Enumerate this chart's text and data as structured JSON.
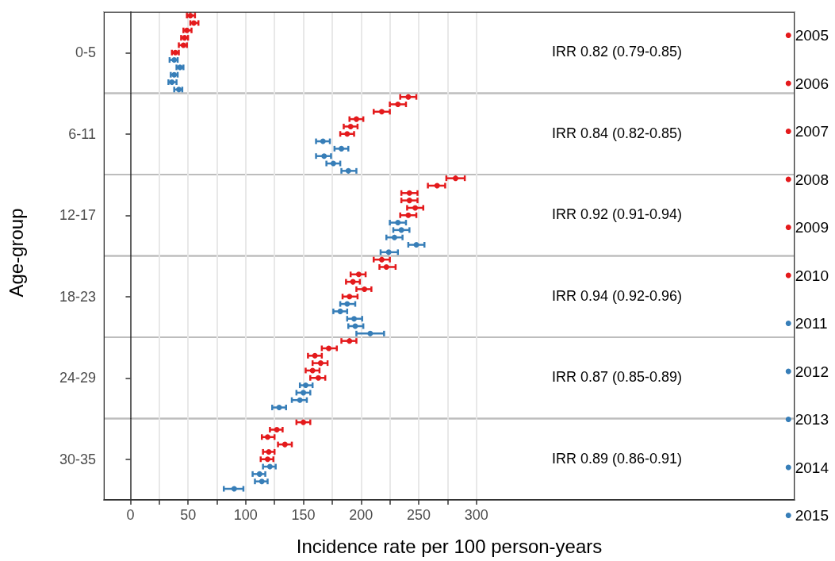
{
  "chart_data": {
    "type": "scatter",
    "orientation": "horizontal",
    "xlabel": "Incidence rate per 100 person-years",
    "ylabel": "Age-group",
    "categories": [
      null,
      null,
      null,
      null,
      null,
      "0-5",
      null,
      null,
      null,
      null,
      null,
      null,
      null,
      null,
      null,
      null,
      "6-11",
      null,
      null,
      null,
      null,
      null,
      null,
      null,
      null,
      null,
      null,
      "12-17",
      null,
      null,
      null,
      null,
      null,
      null,
      null,
      null,
      null,
      null,
      "18-23",
      null,
      null,
      null,
      null,
      null,
      null,
      null,
      null,
      null,
      null,
      "24-29",
      null,
      null,
      null,
      null,
      null,
      null,
      null,
      null,
      null,
      null,
      "30-35",
      null,
      null,
      null,
      null,
      null
    ],
    "xlim": [
      -23,
      576
    ],
    "xticks": [
      0,
      {
        "value": 25,
        "label": null
      },
      50,
      {
        "value": 75,
        "label": null
      },
      100,
      {
        "value": 125,
        "label": null
      },
      150,
      {
        "value": 175,
        "label": null
      },
      200,
      {
        "value": 225,
        "label": null
      },
      250,
      {
        "value": 275,
        "label": null
      },
      300
    ],
    "grid": "x",
    "legend": "right",
    "marker": "circle",
    "annotations": [
      "IRR 0.82 (0.79-0.85)",
      "IRR 0.84 (0.82-0.85)",
      "IRR 0.92 (0.91-0.94)",
      "IRR 0.94 (0.92-0.96)",
      "IRR 0.87 (0.85-0.89)",
      "IRR 0.89 (0.86-0.91)"
    ],
    "series": [
      {
        "name": "2005",
        "color": "#e41a1c",
        "values": [
          52,
          null,
          null,
          null,
          null,
          null,
          null,
          null,
          null,
          null,
          null,
          241,
          null,
          null,
          null,
          null,
          null,
          null,
          null,
          null,
          null,
          null,
          282,
          null,
          null,
          null,
          null,
          null,
          null,
          null,
          null,
          null,
          null,
          218,
          null,
          null,
          null,
          null,
          null,
          null,
          null,
          null,
          null,
          null,
          190,
          null,
          null,
          null,
          null,
          null,
          null,
          null,
          null,
          null,
          null,
          150,
          null,
          null,
          null,
          null,
          null,
          null,
          null,
          null,
          null,
          null
        ],
        "errors": [
          [
            49,
            56
          ],
          null,
          null,
          null,
          null,
          null,
          null,
          null,
          null,
          null,
          null,
          [
            234,
            248
          ],
          null,
          null,
          null,
          null,
          null,
          null,
          null,
          null,
          null,
          null,
          [
            274,
            290
          ],
          null,
          null,
          null,
          null,
          null,
          null,
          null,
          null,
          null,
          null,
          [
            211,
            225
          ],
          null,
          null,
          null,
          null,
          null,
          null,
          null,
          null,
          null,
          null,
          [
            183,
            196
          ],
          null,
          null,
          null,
          null,
          null,
          null,
          null,
          null,
          null,
          null,
          [
            144,
            156
          ],
          null,
          null,
          null,
          null,
          null,
          null,
          null,
          null,
          null,
          null
        ]
      },
      {
        "name": "2006",
        "color": "#e41a1c",
        "values": [
          null,
          55,
          null,
          null,
          null,
          null,
          null,
          null,
          null,
          null,
          null,
          null,
          232,
          null,
          null,
          null,
          null,
          null,
          null,
          null,
          null,
          null,
          null,
          266,
          null,
          null,
          null,
          null,
          null,
          null,
          null,
          null,
          null,
          null,
          222,
          null,
          null,
          null,
          null,
          null,
          null,
          null,
          null,
          null,
          null,
          172,
          null,
          null,
          null,
          null,
          null,
          null,
          null,
          null,
          null,
          null,
          127,
          null,
          null,
          null,
          null,
          null,
          null,
          null,
          null,
          null
        ],
        "errors": [
          null,
          [
            52,
            59
          ],
          null,
          null,
          null,
          null,
          null,
          null,
          null,
          null,
          null,
          null,
          [
            225,
            239
          ],
          null,
          null,
          null,
          null,
          null,
          null,
          null,
          null,
          null,
          null,
          [
            258,
            273
          ],
          null,
          null,
          null,
          null,
          null,
          null,
          null,
          null,
          null,
          null,
          [
            216,
            230
          ],
          null,
          null,
          null,
          null,
          null,
          null,
          null,
          null,
          null,
          null,
          [
            166,
            179
          ],
          null,
          null,
          null,
          null,
          null,
          null,
          null,
          null,
          null,
          null,
          [
            121,
            132
          ],
          null,
          null,
          null,
          null,
          null,
          null,
          null,
          null,
          null
        ]
      },
      {
        "name": "2007",
        "color": "#e41a1c",
        "values": [
          null,
          null,
          49,
          null,
          null,
          null,
          null,
          null,
          null,
          null,
          null,
          null,
          null,
          218,
          null,
          null,
          null,
          null,
          null,
          null,
          null,
          null,
          null,
          null,
          242,
          null,
          null,
          null,
          null,
          null,
          null,
          null,
          null,
          null,
          null,
          198,
          null,
          null,
          null,
          null,
          null,
          null,
          null,
          null,
          null,
          null,
          160,
          null,
          null,
          null,
          null,
          null,
          null,
          null,
          null,
          null,
          null,
          119,
          null,
          null,
          null,
          null,
          null,
          null,
          null,
          null
        ],
        "errors": [
          null,
          null,
          [
            46,
            53
          ],
          null,
          null,
          null,
          null,
          null,
          null,
          null,
          null,
          null,
          null,
          [
            211,
            225
          ],
          null,
          null,
          null,
          null,
          null,
          null,
          null,
          null,
          null,
          null,
          [
            235,
            249
          ],
          null,
          null,
          null,
          null,
          null,
          null,
          null,
          null,
          null,
          null,
          [
            191,
            204
          ],
          null,
          null,
          null,
          null,
          null,
          null,
          null,
          null,
          null,
          null,
          [
            154,
            166
          ],
          null,
          null,
          null,
          null,
          null,
          null,
          null,
          null,
          null,
          null,
          [
            114,
            125
          ],
          null,
          null,
          null,
          null,
          null,
          null,
          null,
          null
        ]
      },
      {
        "name": "2008",
        "color": "#e41a1c",
        "values": [
          null,
          null,
          null,
          47,
          null,
          null,
          null,
          null,
          null,
          null,
          null,
          null,
          null,
          null,
          196,
          null,
          null,
          null,
          null,
          null,
          null,
          null,
          null,
          null,
          null,
          242,
          null,
          null,
          null,
          null,
          null,
          null,
          null,
          null,
          null,
          null,
          193,
          null,
          null,
          null,
          null,
          null,
          null,
          null,
          null,
          null,
          null,
          165,
          null,
          null,
          null,
          null,
          null,
          null,
          null,
          null,
          null,
          null,
          134,
          null,
          null,
          null,
          null,
          null,
          null,
          null
        ],
        "errors": [
          null,
          null,
          null,
          [
            44,
            50
          ],
          null,
          null,
          null,
          null,
          null,
          null,
          null,
          null,
          null,
          null,
          [
            190,
            202
          ],
          null,
          null,
          null,
          null,
          null,
          null,
          null,
          null,
          null,
          null,
          [
            235,
            249
          ],
          null,
          null,
          null,
          null,
          null,
          null,
          null,
          null,
          null,
          null,
          [
            187,
            199
          ],
          null,
          null,
          null,
          null,
          null,
          null,
          null,
          null,
          null,
          null,
          [
            158,
            171
          ],
          null,
          null,
          null,
          null,
          null,
          null,
          null,
          null,
          null,
          null,
          [
            128,
            140
          ],
          null,
          null,
          null,
          null,
          null,
          null,
          null
        ]
      },
      {
        "name": "2009",
        "color": "#e41a1c",
        "values": [
          null,
          null,
          null,
          null,
          46,
          null,
          null,
          null,
          null,
          null,
          null,
          null,
          null,
          null,
          null,
          191,
          null,
          null,
          null,
          null,
          null,
          null,
          null,
          null,
          null,
          null,
          247,
          null,
          null,
          null,
          null,
          null,
          null,
          null,
          null,
          null,
          null,
          203,
          null,
          null,
          null,
          null,
          null,
          null,
          null,
          null,
          null,
          null,
          158,
          null,
          null,
          null,
          null,
          null,
          null,
          null,
          null,
          null,
          null,
          120,
          null,
          null,
          null,
          null,
          null,
          null
        ],
        "errors": [
          null,
          null,
          null,
          null,
          [
            42,
            49
          ],
          null,
          null,
          null,
          null,
          null,
          null,
          null,
          null,
          null,
          null,
          [
            185,
            197
          ],
          null,
          null,
          null,
          null,
          null,
          null,
          null,
          null,
          null,
          null,
          [
            240,
            254
          ],
          null,
          null,
          null,
          null,
          null,
          null,
          null,
          null,
          null,
          null,
          [
            196,
            209
          ],
          null,
          null,
          null,
          null,
          null,
          null,
          null,
          null,
          null,
          null,
          [
            152,
            164
          ],
          null,
          null,
          null,
          null,
          null,
          null,
          null,
          null,
          null,
          null,
          [
            115,
            125
          ],
          null,
          null,
          null,
          null,
          null,
          null
        ]
      },
      {
        "name": "2010",
        "color": "#e41a1c",
        "values": [
          null,
          null,
          null,
          null,
          null,
          39,
          null,
          null,
          null,
          null,
          null,
          null,
          null,
          null,
          null,
          null,
          188,
          null,
          null,
          null,
          null,
          null,
          null,
          null,
          null,
          null,
          null,
          241,
          null,
          null,
          null,
          null,
          null,
          null,
          null,
          null,
          null,
          null,
          190,
          null,
          null,
          null,
          null,
          null,
          null,
          null,
          null,
          null,
          null,
          163,
          null,
          null,
          null,
          null,
          null,
          null,
          null,
          null,
          null,
          null,
          119,
          null,
          null,
          null,
          null,
          null
        ],
        "errors": [
          null,
          null,
          null,
          null,
          null,
          [
            36,
            42
          ],
          null,
          null,
          null,
          null,
          null,
          null,
          null,
          null,
          null,
          null,
          [
            182,
            194
          ],
          null,
          null,
          null,
          null,
          null,
          null,
          null,
          null,
          null,
          null,
          [
            234,
            248
          ],
          null,
          null,
          null,
          null,
          null,
          null,
          null,
          null,
          null,
          null,
          [
            184,
            197
          ],
          null,
          null,
          null,
          null,
          null,
          null,
          null,
          null,
          null,
          null,
          [
            156,
            169
          ],
          null,
          null,
          null,
          null,
          null,
          null,
          null,
          null,
          null,
          null,
          [
            113,
            124
          ],
          null,
          null,
          null,
          null,
          null
        ]
      },
      {
        "name": "2011",
        "color": "#377eb8",
        "values": [
          null,
          null,
          null,
          null,
          null,
          null,
          38,
          null,
          null,
          null,
          null,
          null,
          null,
          null,
          null,
          null,
          null,
          167,
          null,
          null,
          null,
          null,
          null,
          null,
          null,
          null,
          null,
          null,
          232,
          null,
          null,
          null,
          null,
          null,
          null,
          null,
          null,
          null,
          null,
          188,
          null,
          null,
          null,
          null,
          null,
          null,
          null,
          null,
          null,
          null,
          152,
          null,
          null,
          null,
          null,
          null,
          null,
          null,
          null,
          null,
          null,
          121,
          null,
          null,
          null,
          null
        ],
        "errors": [
          null,
          null,
          null,
          null,
          null,
          null,
          [
            34,
            41
          ],
          null,
          null,
          null,
          null,
          null,
          null,
          null,
          null,
          null,
          null,
          [
            161,
            173
          ],
          null,
          null,
          null,
          null,
          null,
          null,
          null,
          null,
          null,
          null,
          [
            225,
            239
          ],
          null,
          null,
          null,
          null,
          null,
          null,
          null,
          null,
          null,
          null,
          [
            182,
            195
          ],
          null,
          null,
          null,
          null,
          null,
          null,
          null,
          null,
          null,
          null,
          [
            147,
            158
          ],
          null,
          null,
          null,
          null,
          null,
          null,
          null,
          null,
          null,
          null,
          [
            115,
            126
          ],
          null,
          null,
          null,
          null
        ]
      },
      {
        "name": "2012",
        "color": "#377eb8",
        "values": [
          null,
          null,
          null,
          null,
          null,
          null,
          null,
          43,
          null,
          null,
          null,
          null,
          null,
          null,
          null,
          null,
          null,
          null,
          183,
          null,
          null,
          null,
          null,
          null,
          null,
          null,
          null,
          null,
          null,
          235,
          null,
          null,
          null,
          null,
          null,
          null,
          null,
          null,
          null,
          null,
          182,
          null,
          null,
          null,
          null,
          null,
          null,
          null,
          null,
          null,
          null,
          150,
          null,
          null,
          null,
          null,
          null,
          null,
          null,
          null,
          null,
          null,
          112,
          null,
          null,
          null
        ],
        "errors": [
          null,
          null,
          null,
          null,
          null,
          null,
          null,
          [
            40,
            46
          ],
          null,
          null,
          null,
          null,
          null,
          null,
          null,
          null,
          null,
          null,
          [
            177,
            189
          ],
          null,
          null,
          null,
          null,
          null,
          null,
          null,
          null,
          null,
          null,
          [
            228,
            242
          ],
          null,
          null,
          null,
          null,
          null,
          null,
          null,
          null,
          null,
          null,
          [
            176,
            188
          ],
          null,
          null,
          null,
          null,
          null,
          null,
          null,
          null,
          null,
          null,
          [
            144,
            156
          ],
          null,
          null,
          null,
          null,
          null,
          null,
          null,
          null,
          null,
          null,
          [
            106,
            117
          ],
          null,
          null,
          null
        ]
      },
      {
        "name": "2013",
        "color": "#377eb8",
        "values": [
          null,
          null,
          null,
          null,
          null,
          null,
          null,
          null,
          38,
          null,
          null,
          null,
          null,
          null,
          null,
          null,
          null,
          null,
          null,
          168,
          null,
          null,
          null,
          null,
          null,
          null,
          null,
          null,
          null,
          null,
          229,
          null,
          null,
          null,
          null,
          null,
          null,
          null,
          null,
          null,
          null,
          194,
          null,
          null,
          null,
          null,
          null,
          null,
          null,
          null,
          null,
          null,
          147,
          null,
          null,
          null,
          null,
          null,
          null,
          null,
          null,
          null,
          null,
          114,
          null,
          null
        ],
        "errors": [
          null,
          null,
          null,
          null,
          null,
          null,
          null,
          null,
          [
            35,
            41
          ],
          null,
          null,
          null,
          null,
          null,
          null,
          null,
          null,
          null,
          null,
          [
            161,
            174
          ],
          null,
          null,
          null,
          null,
          null,
          null,
          null,
          null,
          null,
          null,
          [
            222,
            236
          ],
          null,
          null,
          null,
          null,
          null,
          null,
          null,
          null,
          null,
          null,
          [
            188,
            201
          ],
          null,
          null,
          null,
          null,
          null,
          null,
          null,
          null,
          null,
          null,
          [
            140,
            153
          ],
          null,
          null,
          null,
          null,
          null,
          null,
          null,
          null,
          null,
          null,
          [
            108,
            119
          ],
          null,
          null
        ]
      },
      {
        "name": "2014",
        "color": "#377eb8",
        "values": [
          null,
          null,
          null,
          null,
          null,
          null,
          null,
          null,
          null,
          36,
          null,
          null,
          null,
          null,
          null,
          null,
          null,
          null,
          null,
          null,
          176,
          null,
          null,
          null,
          null,
          null,
          null,
          null,
          null,
          null,
          null,
          248,
          null,
          null,
          null,
          null,
          null,
          null,
          null,
          null,
          null,
          null,
          195,
          null,
          null,
          null,
          null,
          null,
          null,
          null,
          null,
          null,
          null,
          129,
          null,
          null,
          null,
          null,
          null,
          null,
          null,
          null,
          null,
          null,
          90,
          null
        ],
        "errors": [
          null,
          null,
          null,
          null,
          null,
          null,
          null,
          null,
          null,
          [
            33,
            40
          ],
          null,
          null,
          null,
          null,
          null,
          null,
          null,
          null,
          null,
          null,
          [
            170,
            182
          ],
          null,
          null,
          null,
          null,
          null,
          null,
          null,
          null,
          null,
          null,
          [
            241,
            255
          ],
          null,
          null,
          null,
          null,
          null,
          null,
          null,
          null,
          null,
          null,
          [
            189,
            202
          ],
          null,
          null,
          null,
          null,
          null,
          null,
          null,
          null,
          null,
          null,
          [
            123,
            135
          ],
          null,
          null,
          null,
          null,
          null,
          null,
          null,
          null,
          null,
          null,
          [
            81,
            98
          ],
          null
        ]
      },
      {
        "name": "2015",
        "color": "#377eb8",
        "values": [
          null,
          null,
          null,
          null,
          null,
          null,
          null,
          null,
          null,
          null,
          42,
          null,
          null,
          null,
          null,
          null,
          null,
          null,
          null,
          null,
          null,
          189,
          null,
          null,
          null,
          null,
          null,
          null,
          null,
          null,
          null,
          null,
          224,
          null,
          null,
          null,
          null,
          null,
          null,
          null,
          null,
          null,
          null,
          208,
          null,
          null,
          null,
          null,
          null,
          null,
          null,
          null,
          null,
          null,
          null,
          null,
          null,
          null,
          null,
          null,
          null,
          null,
          null,
          null,
          null,
          null
        ],
        "errors": [
          null,
          null,
          null,
          null,
          null,
          null,
          null,
          null,
          null,
          null,
          [
            38,
            45
          ],
          null,
          null,
          null,
          null,
          null,
          null,
          null,
          null,
          null,
          null,
          [
            183,
            196
          ],
          null,
          null,
          null,
          null,
          null,
          null,
          null,
          null,
          null,
          null,
          [
            217,
            232
          ],
          null,
          null,
          null,
          null,
          null,
          null,
          null,
          null,
          null,
          null,
          [
            196,
            220
          ],
          null,
          null,
          null,
          null,
          null,
          null,
          null,
          null,
          null,
          null,
          null,
          null,
          null,
          null,
          null,
          null,
          null,
          null,
          null,
          null,
          null,
          null
        ]
      }
    ]
  }
}
